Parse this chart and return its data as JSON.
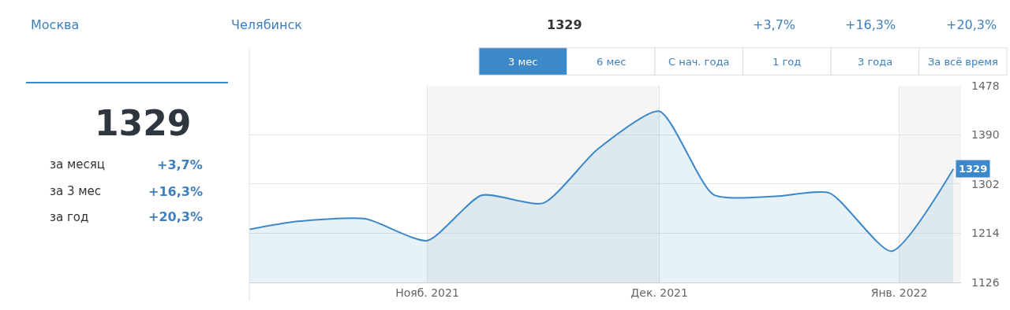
{
  "chart_data": {
    "type": "area",
    "x": [
      "2021-10-09",
      "2021-10-15",
      "2021-10-24",
      "2021-11-01",
      "2021-11-08",
      "2021-11-16",
      "2021-11-23",
      "2021-12-01",
      "2021-12-08",
      "2021-12-16",
      "2021-12-23",
      "2021-12-31",
      "2022-01-08"
    ],
    "series": [
      {
        "color": "#3d88c9",
        "values": [
          1221,
          1235,
          1240,
          1201,
          1282,
          1268,
          1364,
          1432,
          1283,
          1280,
          1286,
          1182,
          1329
        ],
        "value_labels": [
          null,
          null,
          null,
          null,
          null,
          null,
          null,
          null,
          null,
          null,
          null,
          null,
          "1329"
        ]
      }
    ],
    "xlim": [
      "2021-10-09",
      "2022-01-09"
    ],
    "xticks": [
      {
        "value": "2021-11-01",
        "label": "Нояб. 2021"
      },
      {
        "value": "2021-12-01",
        "label": "Дек. 2021"
      },
      {
        "value": "2022-01-01",
        "label": "Янв. 2022"
      }
    ],
    "ylim": [
      1126,
      1478
    ],
    "yticks": [
      1126,
      1214,
      1302,
      1390,
      1478
    ],
    "grid": true,
    "bands": [
      {
        "axis": "x",
        "from": "2021-11-01",
        "to": "2021-12-01",
        "color": "#f5f5f5"
      },
      {
        "axis": "x",
        "from": "2022-01-01",
        "to": "2022-01-09",
        "color": "#f5f5f5"
      }
    ],
    "annotations": [
      "Москва",
      "Челябинск",
      "1329",
      "+3,7%",
      "+16,3%",
      "+20,3%",
      "3 мес",
      "6 мес",
      "С нач. года",
      "1 год",
      "3 года",
      "За всё время",
      "1329",
      "за месяц",
      "+3,7%",
      "за 3 мес",
      "+16,3%",
      "за год",
      "+20,3%"
    ]
  }
}
